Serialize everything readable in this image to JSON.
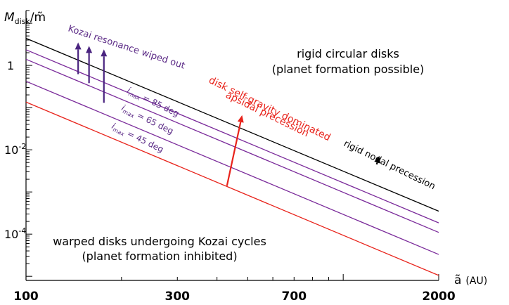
{
  "chart_data": {
    "type": "line",
    "x_scale": "log",
    "y_scale": "log",
    "xlim": [
      100,
      2000
    ],
    "ylim": [
      8e-06,
      20
    ],
    "x_ticks": [
      {
        "value": 100,
        "label": "100"
      },
      {
        "value": 300,
        "label": "300"
      },
      {
        "value": 700,
        "label": "700"
      },
      {
        "value": 2000,
        "label": "2000"
      }
    ],
    "y_ticks": [
      {
        "value": 1,
        "label_base": "1",
        "label_exp": ""
      },
      {
        "value": 0.01,
        "label_base": "10",
        "label_exp": "-2"
      },
      {
        "value": 0.0001,
        "label_base": "10",
        "label_exp": "-4"
      }
    ],
    "ylabel": {
      "main": "M",
      "sub": "disk",
      "rest": "/m̃"
    },
    "xlabel": {
      "main": "ã",
      "unit": "(AU)"
    },
    "grid": false,
    "series": [
      {
        "color": "#000000",
        "points": [
          [
            100,
            4.4
          ],
          [
            2000,
            0.00035
          ]
        ]
      },
      {
        "color": "#7a2a9a",
        "points": [
          [
            100,
            2.35
          ],
          [
            2000,
            0.000185
          ]
        ]
      },
      {
        "color": "#7a2a9a",
        "points": [
          [
            100,
            1.4
          ],
          [
            2000,
            0.00011
          ]
        ]
      },
      {
        "color": "#7a2a9a",
        "points": [
          [
            100,
            0.42
          ],
          [
            2000,
            3.3e-05
          ]
        ]
      },
      {
        "color": "#e8231b",
        "points": [
          [
            100,
            0.135
          ],
          [
            2000,
            1.05e-05
          ]
        ]
      }
    ],
    "line_labels": [
      {
        "prefix": "i",
        "sub": "max",
        "suffix": " = 85 deg",
        "color": "#5b2a86"
      },
      {
        "prefix": "i",
        "sub": "max",
        "suffix": " = 65 deg",
        "color": "#5b2a86"
      },
      {
        "prefix": "i",
        "sub": "max",
        "suffix": " = 45 deg",
        "color": "#5b2a86"
      }
    ],
    "region_labels": {
      "top_right": [
        "rigid circular disks",
        "(planet formation possible)"
      ],
      "bottom_left": [
        "warped disks undergoing Kozai cycles",
        "(planet formation inhibited)"
      ]
    },
    "annotations": [
      {
        "text": "Kozai resonance wiped out",
        "color": "#5b2a86"
      },
      {
        "text_lines": [
          "disk self-gravity dominated",
          "apsidal precession"
        ],
        "color": "#e8231b"
      },
      {
        "text": "rigid nodal precession",
        "color": "#000000"
      }
    ],
    "arrows": [
      {
        "color": "#4a2480",
        "from": [
          146,
          0.62
        ],
        "to": [
          146,
          3.5
        ]
      },
      {
        "color": "#4a2480",
        "from": [
          158,
          0.38
        ],
        "to": [
          158,
          2.9
        ]
      },
      {
        "color": "#4a2480",
        "from": [
          176,
          0.13
        ],
        "to": [
          176,
          2.4
        ]
      },
      {
        "color": "#e8231b",
        "from": [
          430,
          0.0014
        ],
        "to": [
          480,
          0.066
        ]
      },
      {
        "color": "#000000",
        "from": [
          1275,
          0.0045
        ],
        "to": [
          1300,
          0.0072
        ]
      }
    ]
  }
}
